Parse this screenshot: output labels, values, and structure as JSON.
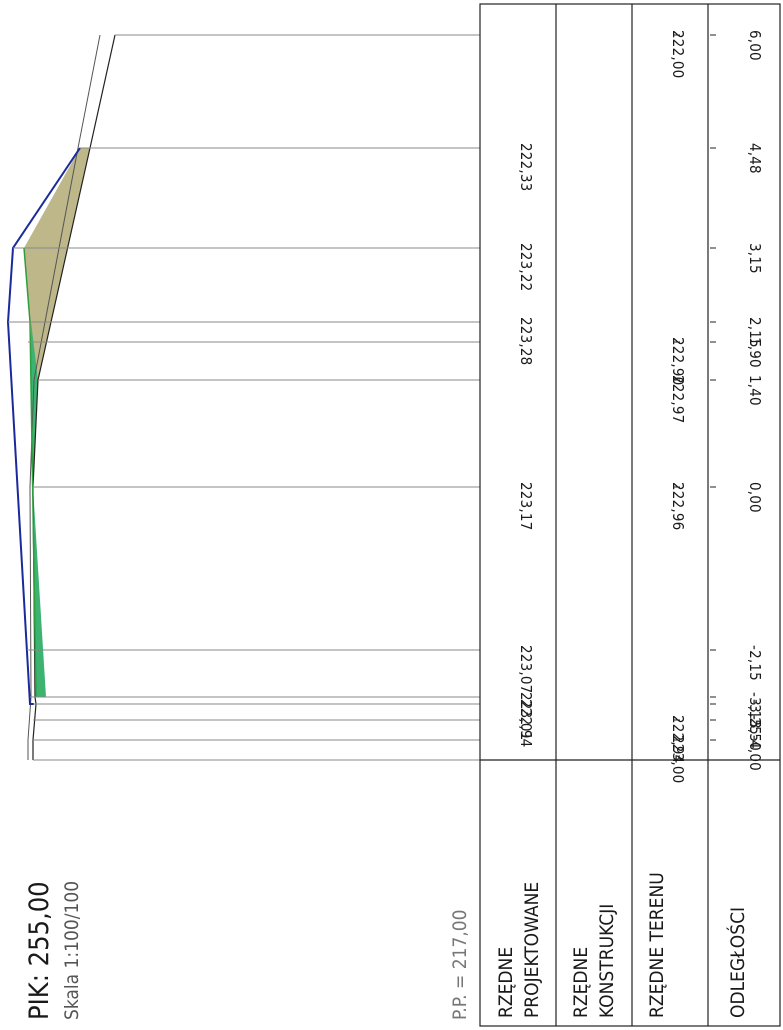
{
  "title": {
    "picket": "PIK: 255,00",
    "scale": "Skala 1:100/100",
    "reference_level": "P.P. = 217,00"
  },
  "row_headers": {
    "design": [
      "RZĘDNE",
      "PROJEKTOWANE"
    ],
    "construction": [
      "RZĘDNE",
      "KONSTRUKCJI"
    ],
    "terrain": "RZĘDNE TERENU",
    "distances": "ODLEGŁOŚCI"
  },
  "colors": {
    "design_line": "#1a2a9a",
    "fill_cut": "#bdb78a",
    "fill_embankment": "#3cb371",
    "terrain_line": "#222222",
    "grid": "#888888"
  },
  "stations": [
    {
      "design": "",
      "terrain": "222,00",
      "distance": "6,00"
    },
    {
      "design": "222,33",
      "terrain": "",
      "distance": "4,48"
    },
    {
      "design": "223,22",
      "terrain": "",
      "distance": "3,15"
    },
    {
      "design": "223,28",
      "terrain": "",
      "distance": "2,15"
    },
    {
      "design": "",
      "terrain": "222,90",
      "distance": "1,90"
    },
    {
      "design": "",
      "terrain": "222,97",
      "distance": "1,40"
    },
    {
      "design": "223,17",
      "terrain": "222,96",
      "distance": "0,00"
    },
    {
      "design": "223,07",
      "terrain": "",
      "distance": "-2,15"
    },
    {
      "design": "223,01",
      "terrain": "",
      "distance": "-3,15"
    },
    {
      "design": "222,94",
      "terrain": "",
      "distance": "-3,25"
    },
    {
      "design": "",
      "terrain": "222,94",
      "distance": "-3,50"
    },
    {
      "design": "",
      "terrain": "223,00",
      "distance": "-4,00"
    }
  ]
}
